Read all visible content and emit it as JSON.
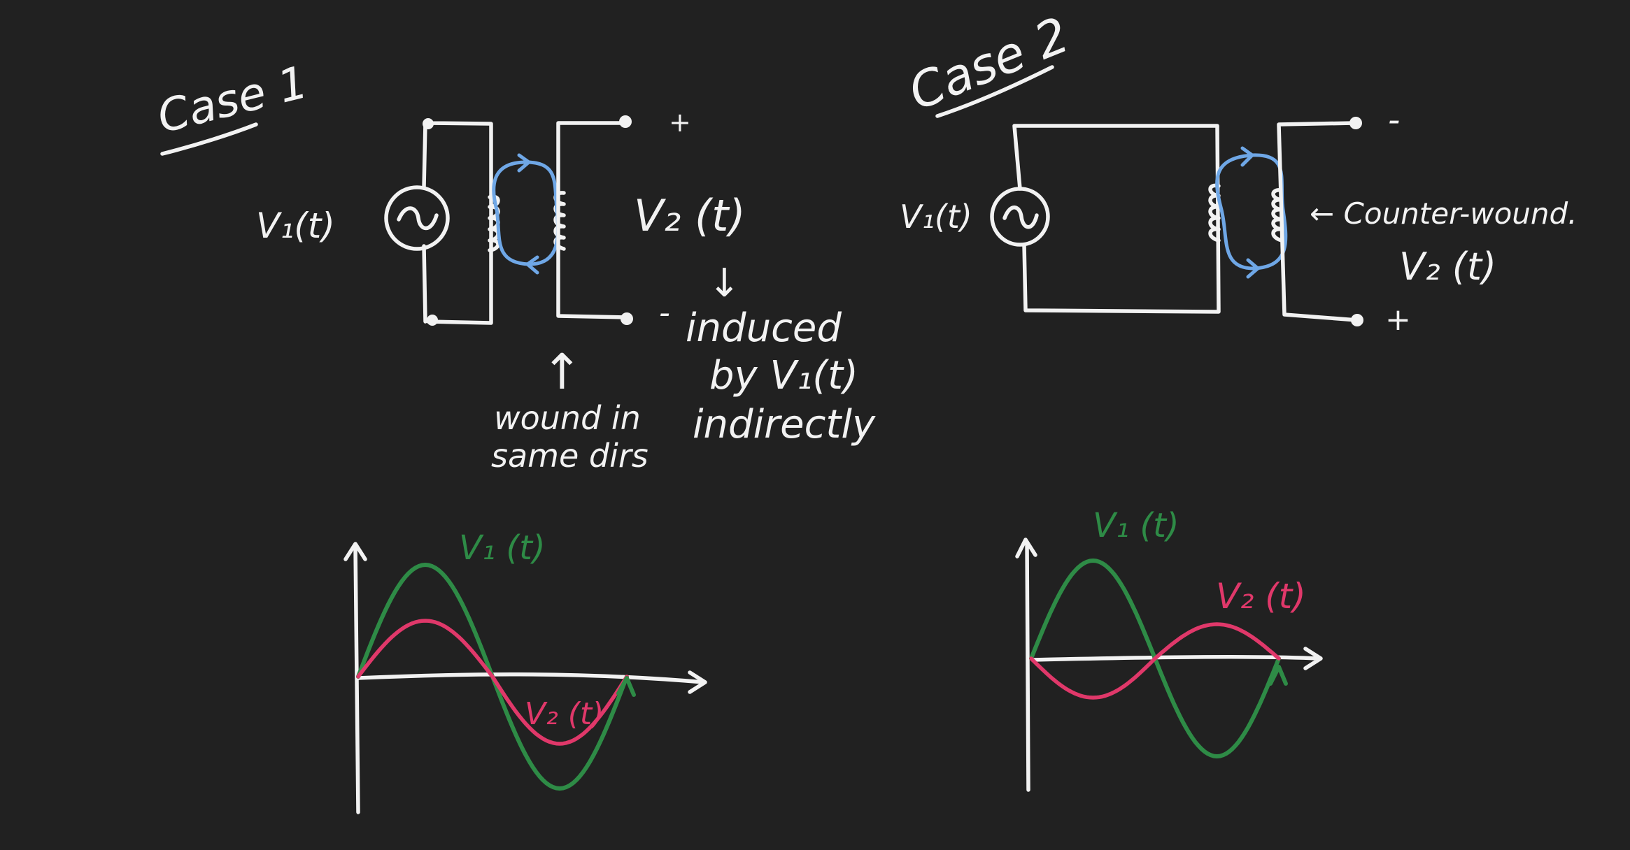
{
  "case1": {
    "title": "Case 1",
    "source_label": "V₁(t)",
    "output_label": "V₂ (t)",
    "plus_sign": "+",
    "minus_sign": "-",
    "down_arrow": "↓",
    "note_line1": "induced",
    "note_line2": "by V₁(t)",
    "note_line3": "indirectly",
    "up_arrow": "↑",
    "winding_line1": "wound in",
    "winding_line2": "same dirs",
    "graph": {
      "v1_label": "V₁ (t)",
      "v2_label": "V₂ (t)"
    }
  },
  "case2": {
    "title": "Case 2",
    "source_label": "V₁(t)",
    "winding_note": "← Counter-wound.",
    "output_label": "V₂ (t)",
    "minus_sign": "-",
    "plus_sign": "+",
    "graph": {
      "v1_label": "V₁ (t)",
      "v2_label": "V₂ (t)"
    }
  },
  "colors": {
    "background": "#212121",
    "ink": "#f2f2f2",
    "flux_loop": "#6fa7e6",
    "v1_curve": "#2e8b46",
    "v2_curve": "#e0386a"
  },
  "chart_data": [
    {
      "type": "line",
      "title": "",
      "xlabel": "",
      "ylabel": "",
      "x": [
        0,
        0.25,
        0.5,
        0.75,
        1.0
      ],
      "series": [
        {
          "name": "V₁ (t)",
          "values": [
            0,
            1,
            0,
            -1,
            0
          ]
        },
        {
          "name": "V₂ (t)",
          "values": [
            0,
            0.5,
            0,
            -0.6,
            0
          ]
        }
      ]
    },
    {
      "type": "line",
      "title": "",
      "xlabel": "",
      "ylabel": "",
      "x": [
        0,
        0.25,
        0.5,
        0.75,
        1.0
      ],
      "series": [
        {
          "name": "V₁ (t)",
          "values": [
            0,
            1,
            0,
            -1,
            0
          ]
        },
        {
          "name": "V₂ (t)",
          "values": [
            0,
            -0.4,
            0,
            0.35,
            0
          ]
        }
      ]
    }
  ]
}
